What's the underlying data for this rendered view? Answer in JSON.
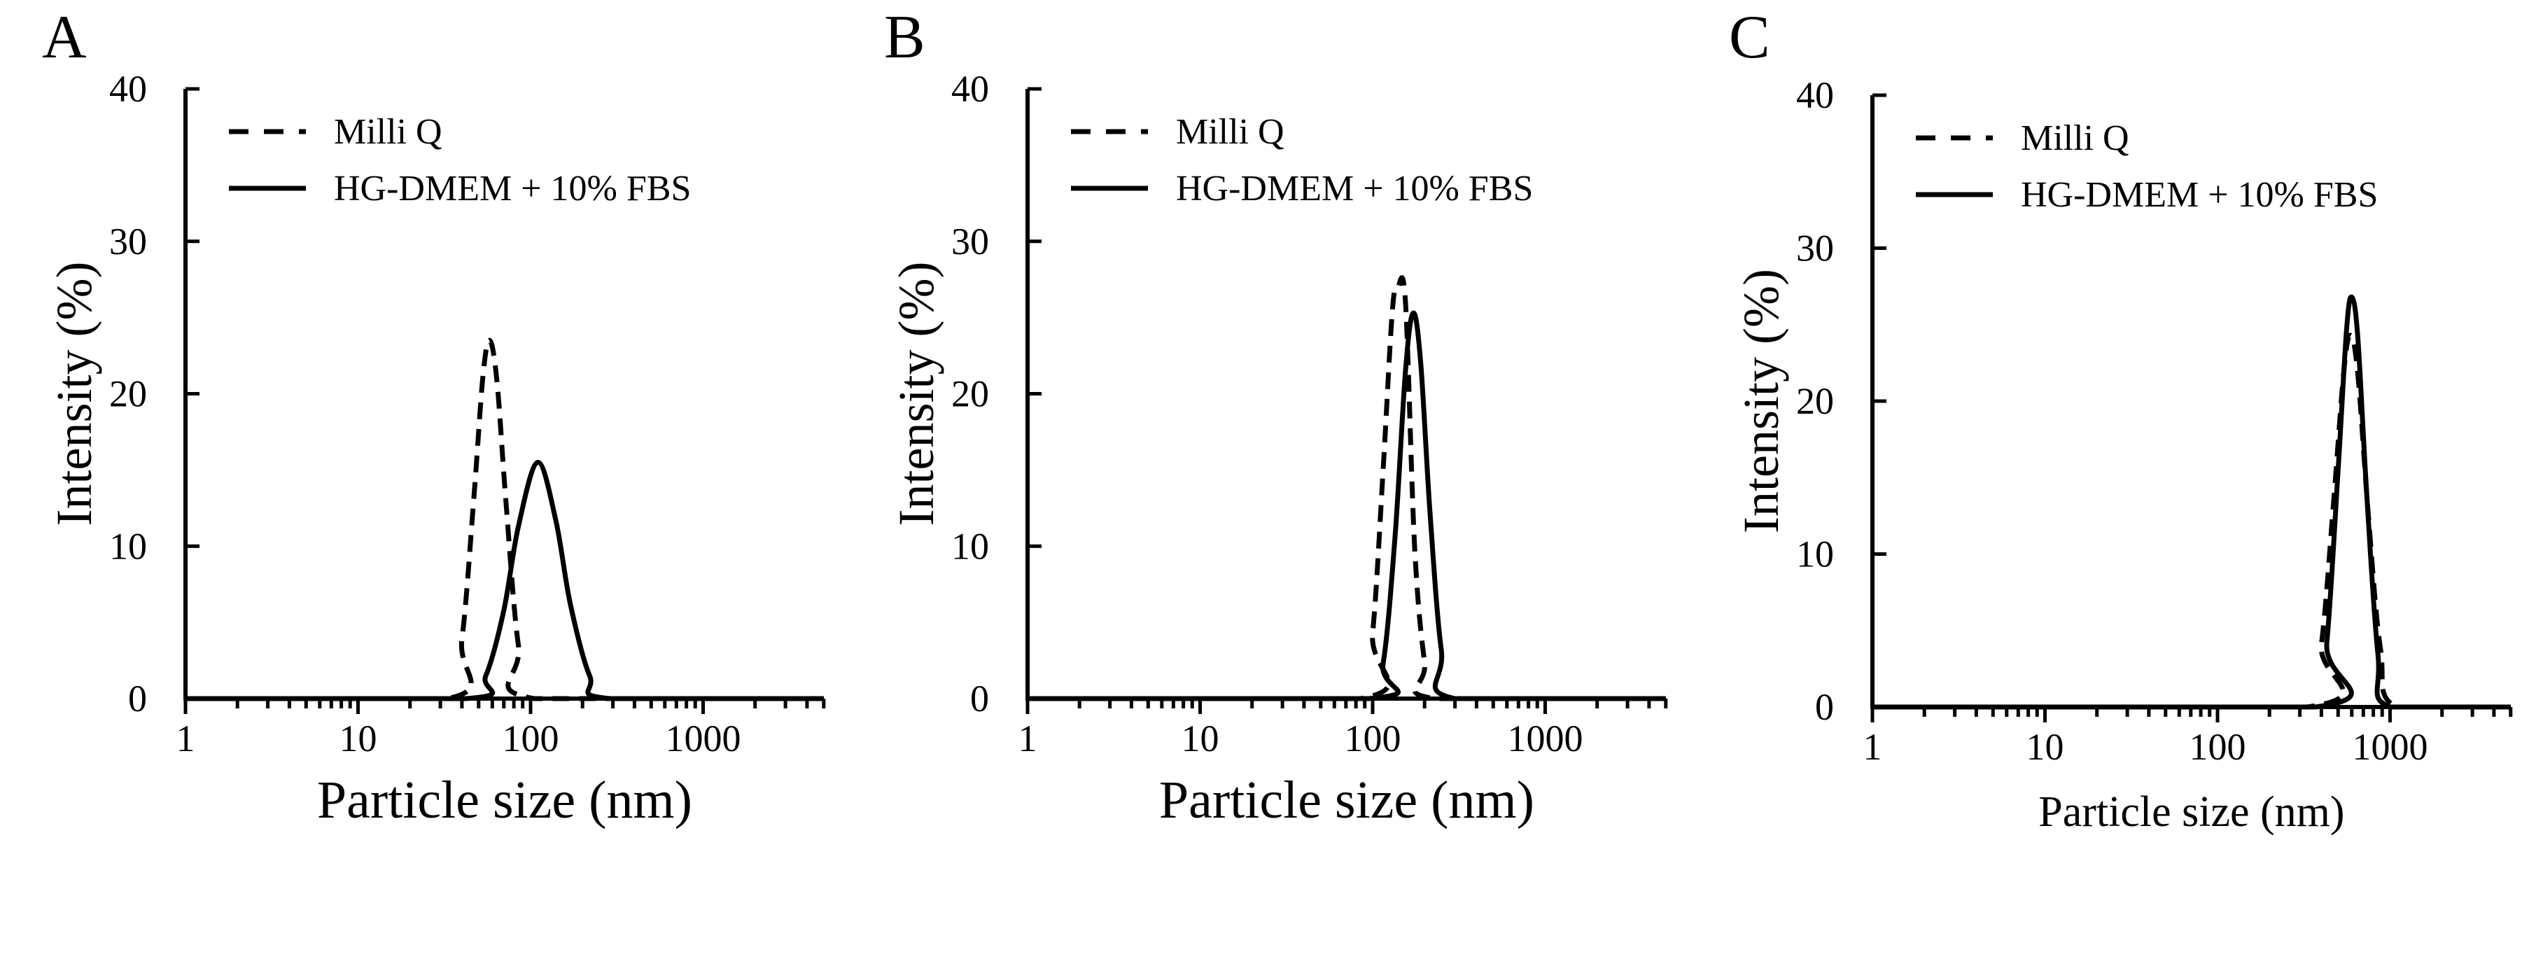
{
  "chart_data": [
    {
      "type": "line",
      "panel_label": "A",
      "xlabel": "Particle size (nm)",
      "ylabel": "Intensity (%)",
      "x_scale": "log",
      "xlim": [
        1,
        5000
      ],
      "ylim": [
        0,
        40
      ],
      "x_ticks": [
        "1",
        "10",
        "100",
        "1000"
      ],
      "y_ticks": [
        "0",
        "10",
        "20",
        "30",
        "40"
      ],
      "legend_position": "top-left",
      "grid": false,
      "series": [
        {
          "name": "Milli Q",
          "style": "dashed",
          "x": [
            1,
            33,
            40,
            47,
            53,
            58,
            64,
            72,
            85,
            105,
            5000
          ],
          "y": [
            0,
            0,
            3.9,
            13.3,
            21.2,
            23.5,
            20.7,
            12.9,
            3.5,
            0,
            0
          ]
        },
        {
          "name": "HG-DMEM + 10% FBS",
          "style": "solid",
          "x": [
            1,
            42,
            55,
            70,
            85,
            110,
            140,
            170,
            220,
            290,
            5000
          ],
          "y": [
            0,
            0,
            1.5,
            5.8,
            11.3,
            15.5,
            11.7,
            6.2,
            1.5,
            0,
            0
          ]
        }
      ]
    },
    {
      "type": "line",
      "panel_label": "B",
      "xlabel": "Particle size (nm)",
      "ylabel": "Intensity (%)",
      "x_scale": "log",
      "xlim": [
        1,
        5000
      ],
      "ylim": [
        0,
        40
      ],
      "x_ticks": [
        "1",
        "10",
        "100",
        "1000"
      ],
      "y_ticks": [
        "0",
        "10",
        "20",
        "30",
        "40"
      ],
      "legend_position": "top-left",
      "grid": false,
      "series": [
        {
          "name": "Milli Q",
          "style": "dashed",
          "x": [
            1,
            85,
            100,
            115,
            130,
            140,
            155,
            175,
            200,
            230,
            5000
          ],
          "y": [
            0,
            0,
            4.3,
            15,
            25.4,
            27,
            26,
            10,
            2.4,
            0,
            0
          ]
        },
        {
          "name": "HG-DMEM + 10% FBS",
          "style": "solid",
          "x": [
            1,
            95,
            115,
            135,
            155,
            172,
            190,
            215,
            250,
            300,
            5000
          ],
          "y": [
            0,
            0,
            2.3,
            10.7,
            21.5,
            25.3,
            22,
            12.2,
            3.2,
            0,
            0
          ]
        }
      ]
    },
    {
      "type": "line",
      "panel_label": "C",
      "xlabel": "Particle size (nm)",
      "ylabel": "Intensity (%)",
      "x_scale": "log",
      "xlim": [
        1,
        5000
      ],
      "ylim": [
        0,
        40
      ],
      "x_ticks": [
        "1",
        "10",
        "100",
        "1000"
      ],
      "y_ticks": [
        "0",
        "10",
        "20",
        "30",
        "40"
      ],
      "legend_position": "top-left",
      "grid": false,
      "series": [
        {
          "name": "Milli Q",
          "style": "dashed",
          "x": [
            1,
            330,
            400,
            470,
            540,
            590,
            650,
            750,
            880,
            1100,
            5000
          ],
          "y": [
            0,
            0,
            4.1,
            13.3,
            22,
            24.3,
            21.8,
            12.4,
            3.8,
            0,
            0
          ]
        },
        {
          "name": "HG-DMEM + 10% FBS",
          "style": "solid",
          "x": [
            1,
            370,
            430,
            500,
            560,
            600,
            650,
            730,
            850,
            1000,
            5000
          ],
          "y": [
            0,
            0,
            4.2,
            15.5,
            24.7,
            26.8,
            24.2,
            14.2,
            3.5,
            0,
            0
          ]
        }
      ]
    }
  ]
}
